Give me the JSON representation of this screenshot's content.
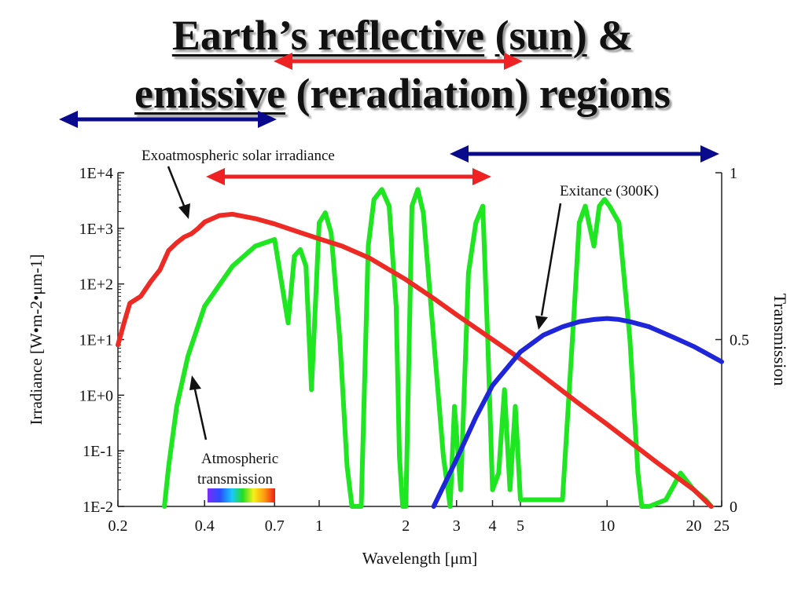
{
  "slide": {
    "title_line1": {
      "u1": "Earth’s reflective",
      "plain1": " ",
      "u2": "(sun)",
      "plain2": " &"
    },
    "title_line2": {
      "u1": "emissive",
      "plain1": " (reradiation) regions"
    }
  },
  "colors": {
    "solar": "#ee2a24",
    "exitance": "#1f25d8",
    "transmission": "#1ee620",
    "reflective_arrow": "#ee2222",
    "emissive_arrow": "#0a0a8c"
  },
  "chart_data": {
    "type": "line",
    "xlabel": "Wavelength [μm]",
    "ylabel": "Irradiance  [W•m-2•μm-1]",
    "y2label": "Transmission",
    "x_scale": "log",
    "xlim": [
      0.2,
      25
    ],
    "ylim": [
      0.01,
      10000
    ],
    "y_scale": "log",
    "y2lim": [
      0,
      1
    ],
    "x_ticks": [
      0.2,
      0.4,
      0.7,
      1,
      2,
      3,
      4,
      5,
      10,
      20,
      25
    ],
    "x_tick_labels": [
      "0.2",
      "0.4",
      "0.7",
      "1",
      "2",
      "3",
      "4",
      "5",
      "10",
      "20",
      "25"
    ],
    "y_ticks": [
      0.01,
      0.1,
      1,
      10,
      100,
      1000,
      10000
    ],
    "y_tick_labels": [
      "1E-2",
      "1E-1",
      "1E+0",
      "1E+1",
      "1E+2",
      "1E+3",
      "1E+4"
    ],
    "y2_ticks": [
      0,
      0.5,
      1
    ],
    "y2_tick_labels": [
      "0",
      "0.5",
      "1"
    ],
    "grid": false,
    "annotations": {
      "solar": "Exoatmospheric solar irradiance",
      "exitance": "Exitance (300K)",
      "transmission_line1": "Atmospheric",
      "transmission_line2": "transmission"
    },
    "series": [
      {
        "axis": "left",
        "x": [
          0.2,
          0.21,
          0.22,
          0.24,
          0.26,
          0.28,
          0.3,
          0.32,
          0.34,
          0.36,
          0.38,
          0.4,
          0.45,
          0.5,
          0.6,
          0.7,
          0.8,
          1,
          1.2,
          1.5,
          2,
          2.5,
          3,
          4,
          5,
          6,
          8,
          10,
          15,
          20,
          23
        ],
        "y": [
          8,
          20,
          45,
          60,
          110,
          180,
          400,
          550,
          700,
          800,
          1000,
          1300,
          1700,
          1800,
          1500,
          1200,
          950,
          650,
          480,
          290,
          120,
          55,
          28,
          10,
          4.5,
          2.2,
          0.7,
          0.3,
          0.06,
          0.02,
          0.01
        ]
      },
      {
        "axis": "left",
        "x": [
          2.5,
          3,
          3.5,
          4,
          5,
          6,
          7,
          8,
          9,
          10,
          11,
          12,
          14,
          17,
          20,
          25
        ],
        "y": [
          0.01,
          0.07,
          0.4,
          1.5,
          6,
          12,
          17,
          21,
          23,
          24,
          23,
          21,
          17,
          11,
          7.5,
          4
        ]
      },
      {
        "axis": "right",
        "x": [
          0.29,
          0.3,
          0.32,
          0.35,
          0.4,
          0.5,
          0.6,
          0.7,
          0.78,
          0.82,
          0.86,
          0.9,
          0.94,
          1.0,
          1.05,
          1.1,
          1.18,
          1.25,
          1.3,
          1.4,
          1.48,
          1.55,
          1.65,
          1.75,
          1.85,
          1.9,
          1.95,
          2.0,
          2.1,
          2.2,
          2.3,
          2.5,
          2.7,
          2.85,
          2.95,
          3.1,
          3.3,
          3.5,
          3.7,
          3.85,
          4.0,
          4.2,
          4.4,
          4.6,
          4.8,
          5.0,
          5.3,
          6.0,
          7.0,
          7.7,
          8.0,
          8.4,
          9.0,
          9.4,
          9.8,
          10.2,
          11.0,
          12.0,
          12.8,
          13.2,
          14.0,
          16.0,
          18.0,
          20.0,
          22.0,
          23.0
        ],
        "y": [
          0,
          0.12,
          0.3,
          0.45,
          0.6,
          0.72,
          0.78,
          0.8,
          0.55,
          0.75,
          0.77,
          0.72,
          0.35,
          0.85,
          0.88,
          0.82,
          0.5,
          0.12,
          0,
          0,
          0.78,
          0.92,
          0.95,
          0.9,
          0.6,
          0.15,
          0,
          0,
          0.9,
          0.95,
          0.88,
          0.5,
          0.15,
          0,
          0.3,
          0.05,
          0.7,
          0.85,
          0.9,
          0.5,
          0.05,
          0.1,
          0.35,
          0.05,
          0.3,
          0.02,
          0.02,
          0.02,
          0.02,
          0.6,
          0.85,
          0.9,
          0.78,
          0.9,
          0.92,
          0.9,
          0.85,
          0.5,
          0.1,
          0,
          0,
          0.02,
          0.1,
          0.05,
          0.02,
          0
        ]
      }
    ]
  }
}
